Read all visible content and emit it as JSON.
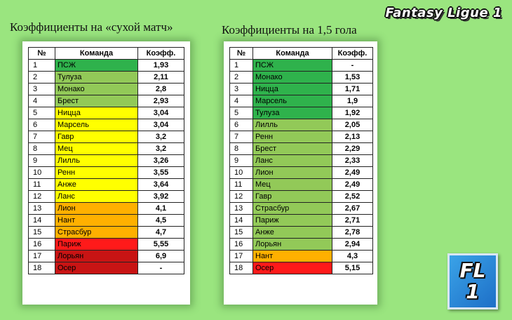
{
  "brand": "Fantasy Ligue 1",
  "logo": {
    "line1": "FL",
    "line2": "1"
  },
  "colors": {
    "background": "#9ae57f",
    "dark_green": "#2fb24c",
    "light_green": "#92c958",
    "yellow": "#ffff00",
    "orange": "#ffb000",
    "red": "#ff1a1a",
    "dark_red": "#c81414"
  },
  "clean_sheet": {
    "title": "Коэффициенты на «сухой матч»",
    "headers": [
      "№",
      "Команда",
      "Коэфф."
    ],
    "rows": [
      {
        "n": "1",
        "team": "ПСЖ",
        "coef": "1,93",
        "color": "#2fb24c"
      },
      {
        "n": "2",
        "team": "Тулуза",
        "coef": "2,11",
        "color": "#92c958"
      },
      {
        "n": "3",
        "team": "Монако",
        "coef": "2,8",
        "color": "#92c958"
      },
      {
        "n": "4",
        "team": "Брест",
        "coef": "2,93",
        "color": "#92c958"
      },
      {
        "n": "5",
        "team": "Ницца",
        "coef": "3,04",
        "color": "#ffff00"
      },
      {
        "n": "6",
        "team": "Марсель",
        "coef": "3,04",
        "color": "#ffff00"
      },
      {
        "n": "7",
        "team": "Гавр",
        "coef": "3,2",
        "color": "#ffff00"
      },
      {
        "n": "8",
        "team": "Мец",
        "coef": "3,2",
        "color": "#ffff00"
      },
      {
        "n": "9",
        "team": "Лилль",
        "coef": "3,26",
        "color": "#ffff00"
      },
      {
        "n": "10",
        "team": "Ренн",
        "coef": "3,55",
        "color": "#ffff00"
      },
      {
        "n": "11",
        "team": "Анже",
        "coef": "3,64",
        "color": "#ffff00"
      },
      {
        "n": "12",
        "team": "Ланс",
        "coef": "3,92",
        "color": "#ffff00"
      },
      {
        "n": "13",
        "team": "Лион",
        "coef": "4,1",
        "color": "#ffb000"
      },
      {
        "n": "14",
        "team": "Нант",
        "coef": "4,5",
        "color": "#ffb000"
      },
      {
        "n": "15",
        "team": "Страсбур",
        "coef": "4,7",
        "color": "#ffb000"
      },
      {
        "n": "16",
        "team": "Париж",
        "coef": "5,55",
        "color": "#ff1a1a"
      },
      {
        "n": "17",
        "team": "Лорьян",
        "coef": "6,9",
        "color": "#c81414"
      },
      {
        "n": "18",
        "team": "Осер",
        "coef": "-",
        "color": "#c81414"
      }
    ]
  },
  "goals_15": {
    "title": "Коэффициенты на 1,5 гола",
    "headers": [
      "№",
      "Команда",
      "Коэфф."
    ],
    "rows": [
      {
        "n": "1",
        "team": "ПСЖ",
        "coef": "-",
        "color": "#2fb24c"
      },
      {
        "n": "2",
        "team": "Монако",
        "coef": "1,53",
        "color": "#2fb24c"
      },
      {
        "n": "3",
        "team": "Ницца",
        "coef": "1,71",
        "color": "#2fb24c"
      },
      {
        "n": "4",
        "team": "Марсель",
        "coef": "1,9",
        "color": "#2fb24c"
      },
      {
        "n": "5",
        "team": "Тулуза",
        "coef": "1,92",
        "color": "#2fb24c"
      },
      {
        "n": "6",
        "team": "Лилль",
        "coef": "2,05",
        "color": "#92c958"
      },
      {
        "n": "7",
        "team": "Ренн",
        "coef": "2,13",
        "color": "#92c958"
      },
      {
        "n": "8",
        "team": "Брест",
        "coef": "2,29",
        "color": "#92c958"
      },
      {
        "n": "9",
        "team": "Ланс",
        "coef": "2,33",
        "color": "#92c958"
      },
      {
        "n": "10",
        "team": "Лион",
        "coef": "2,49",
        "color": "#92c958"
      },
      {
        "n": "11",
        "team": "Мец",
        "coef": "2,49",
        "color": "#92c958"
      },
      {
        "n": "12",
        "team": "Гавр",
        "coef": "2,52",
        "color": "#92c958"
      },
      {
        "n": "13",
        "team": "Страсбур",
        "coef": "2,67",
        "color": "#92c958"
      },
      {
        "n": "14",
        "team": "Париж",
        "coef": "2,71",
        "color": "#92c958"
      },
      {
        "n": "15",
        "team": "Анже",
        "coef": "2,78",
        "color": "#92c958"
      },
      {
        "n": "16",
        "team": "Лорьян",
        "coef": "2,94",
        "color": "#92c958"
      },
      {
        "n": "17",
        "team": "Нант",
        "coef": "4,3",
        "color": "#ffb000"
      },
      {
        "n": "18",
        "team": "Осер",
        "coef": "5,15",
        "color": "#ff1a1a"
      }
    ]
  }
}
